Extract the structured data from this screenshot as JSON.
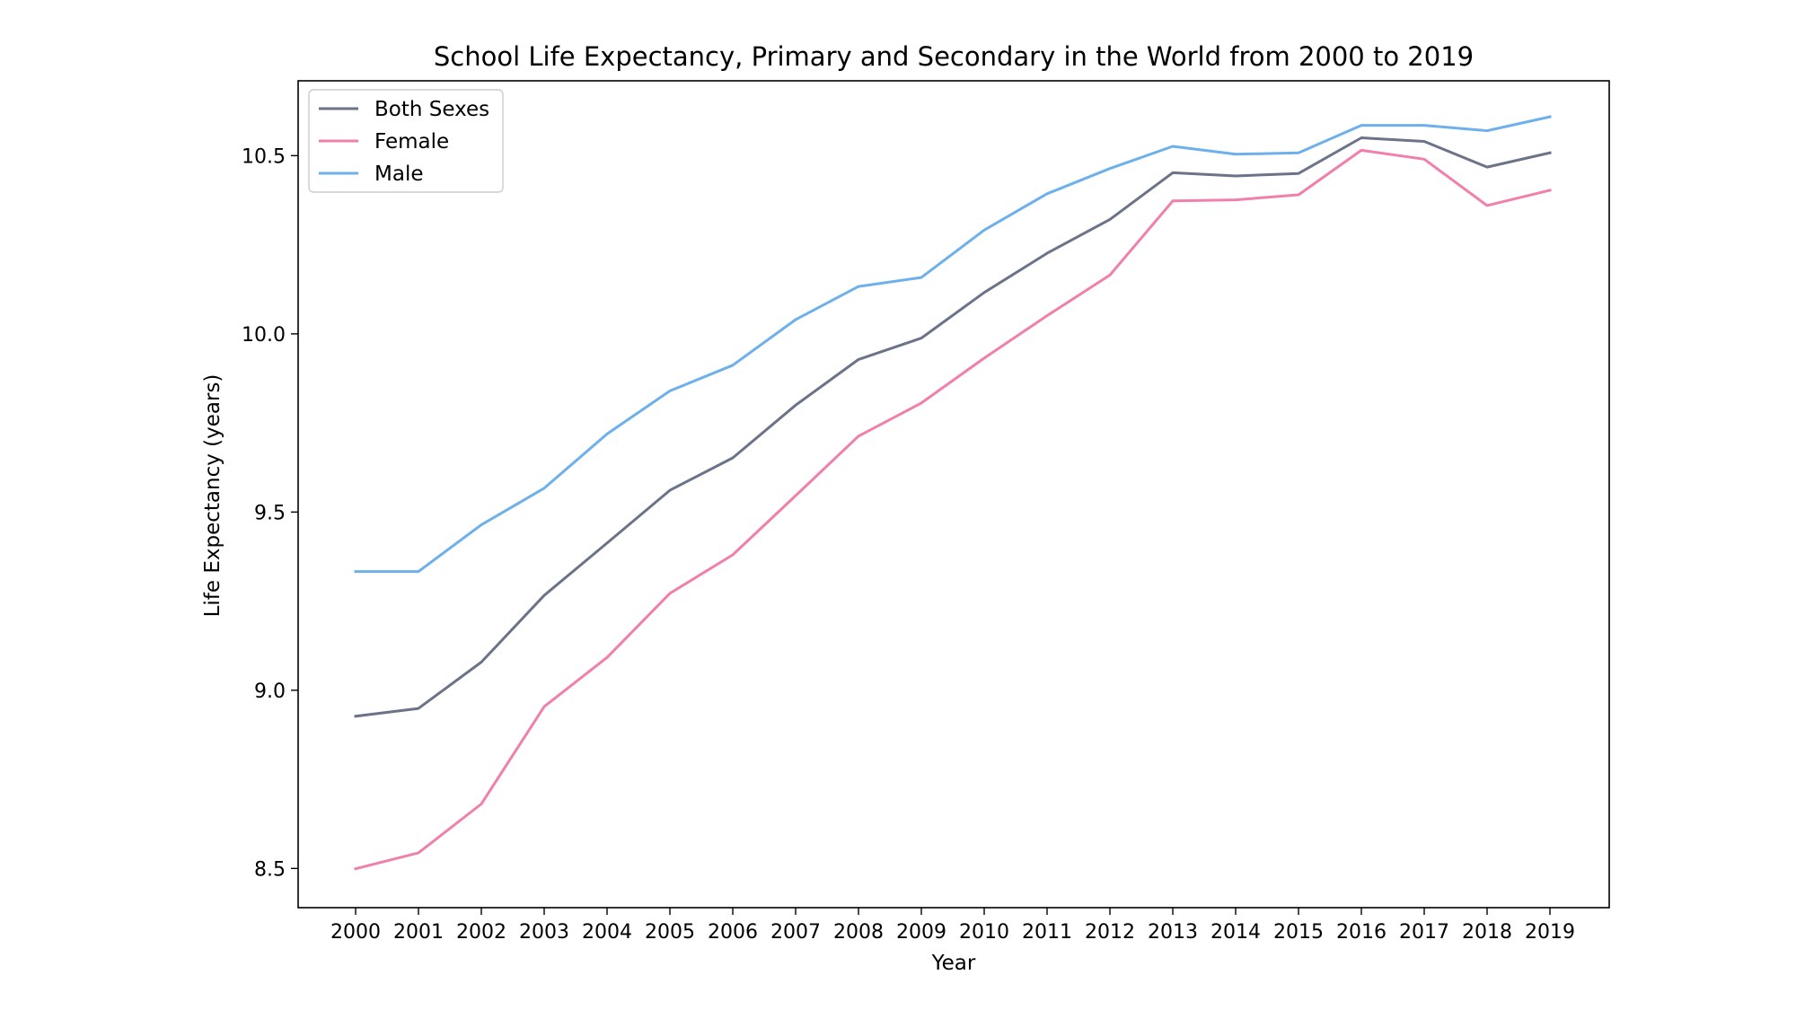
{
  "chart_data": {
    "type": "line",
    "title": "School Life Expectancy, Primary and Secondary in the World from 2000 to 2019",
    "xlabel": "Year",
    "ylabel": "Life Expectancy (years)",
    "x": [
      "2000",
      "2001",
      "2002",
      "2003",
      "2004",
      "2005",
      "2006",
      "2007",
      "2008",
      "2009",
      "2010",
      "2011",
      "2012",
      "2013",
      "2014",
      "2015",
      "2016",
      "2017",
      "2018",
      "2019"
    ],
    "y_ticks": [
      "8.5",
      "9.0",
      "9.5",
      "10.0",
      "10.5"
    ],
    "ylim": [
      8.39,
      10.71
    ],
    "grid": false,
    "legend_position": "top-left",
    "series": [
      {
        "name": "Both Sexes",
        "color": "#6b7388",
        "values": [
          8.927,
          8.949,
          9.079,
          9.266,
          9.413,
          9.561,
          9.652,
          9.8,
          9.928,
          9.988,
          10.116,
          10.226,
          10.321,
          10.452,
          10.443,
          10.45,
          10.55,
          10.54,
          10.468,
          10.508
        ]
      },
      {
        "name": "Female",
        "color": "#f07fab",
        "values": [
          8.499,
          8.544,
          8.681,
          8.954,
          9.092,
          9.272,
          9.38,
          9.546,
          9.713,
          9.806,
          9.932,
          10.051,
          10.165,
          10.373,
          10.376,
          10.39,
          10.515,
          10.49,
          10.36,
          10.403
        ]
      },
      {
        "name": "Male",
        "color": "#6db0eb",
        "values": [
          9.333,
          9.333,
          9.464,
          9.567,
          9.719,
          9.84,
          9.912,
          10.04,
          10.133,
          10.158,
          10.291,
          10.393,
          10.464,
          10.526,
          10.504,
          10.508,
          10.585,
          10.585,
          10.57,
          10.609
        ]
      }
    ]
  }
}
